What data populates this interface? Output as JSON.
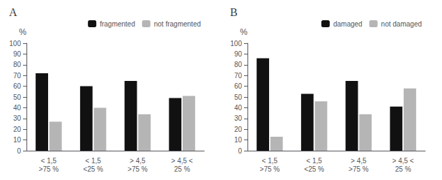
{
  "chart_data": [
    {
      "type": "bar",
      "title": "A",
      "categories": [
        "< 1,5\n>75 %",
        "< 1,5\n<25 %",
        "> 4,5\n>75 %",
        "> 4,5 <\n25 %"
      ],
      "series": [
        {
          "name": "fragmented",
          "color": "#111111",
          "values": [
            72,
            60,
            65,
            49
          ]
        },
        {
          "name": "not fragmented",
          "color": "#b5b5b5",
          "values": [
            27,
            40,
            34,
            51
          ]
        }
      ],
      "ylabel": "%",
      "ylim": [
        0,
        100
      ],
      "yticks": [
        0,
        10,
        20,
        30,
        40,
        50,
        60,
        70,
        80,
        90,
        100
      ],
      "grid": false,
      "legend": "upper right"
    },
    {
      "type": "bar",
      "title": "B",
      "categories": [
        "< 1,5\n>75 %",
        "< 1,5\n<25 %",
        "> 4,5\n>75 %",
        "> 4,5 <\n25 %"
      ],
      "series": [
        {
          "name": "damaged",
          "color": "#111111",
          "values": [
            86,
            53,
            65,
            41
          ]
        },
        {
          "name": "not damaged",
          "color": "#b5b5b5",
          "values": [
            13,
            46,
            34,
            58
          ]
        }
      ],
      "ylabel": "%",
      "ylim": [
        0,
        100
      ],
      "yticks": [
        0,
        10,
        20,
        30,
        40,
        50,
        60,
        70,
        80,
        90,
        100
      ],
      "grid": false,
      "legend": "upper right"
    }
  ]
}
